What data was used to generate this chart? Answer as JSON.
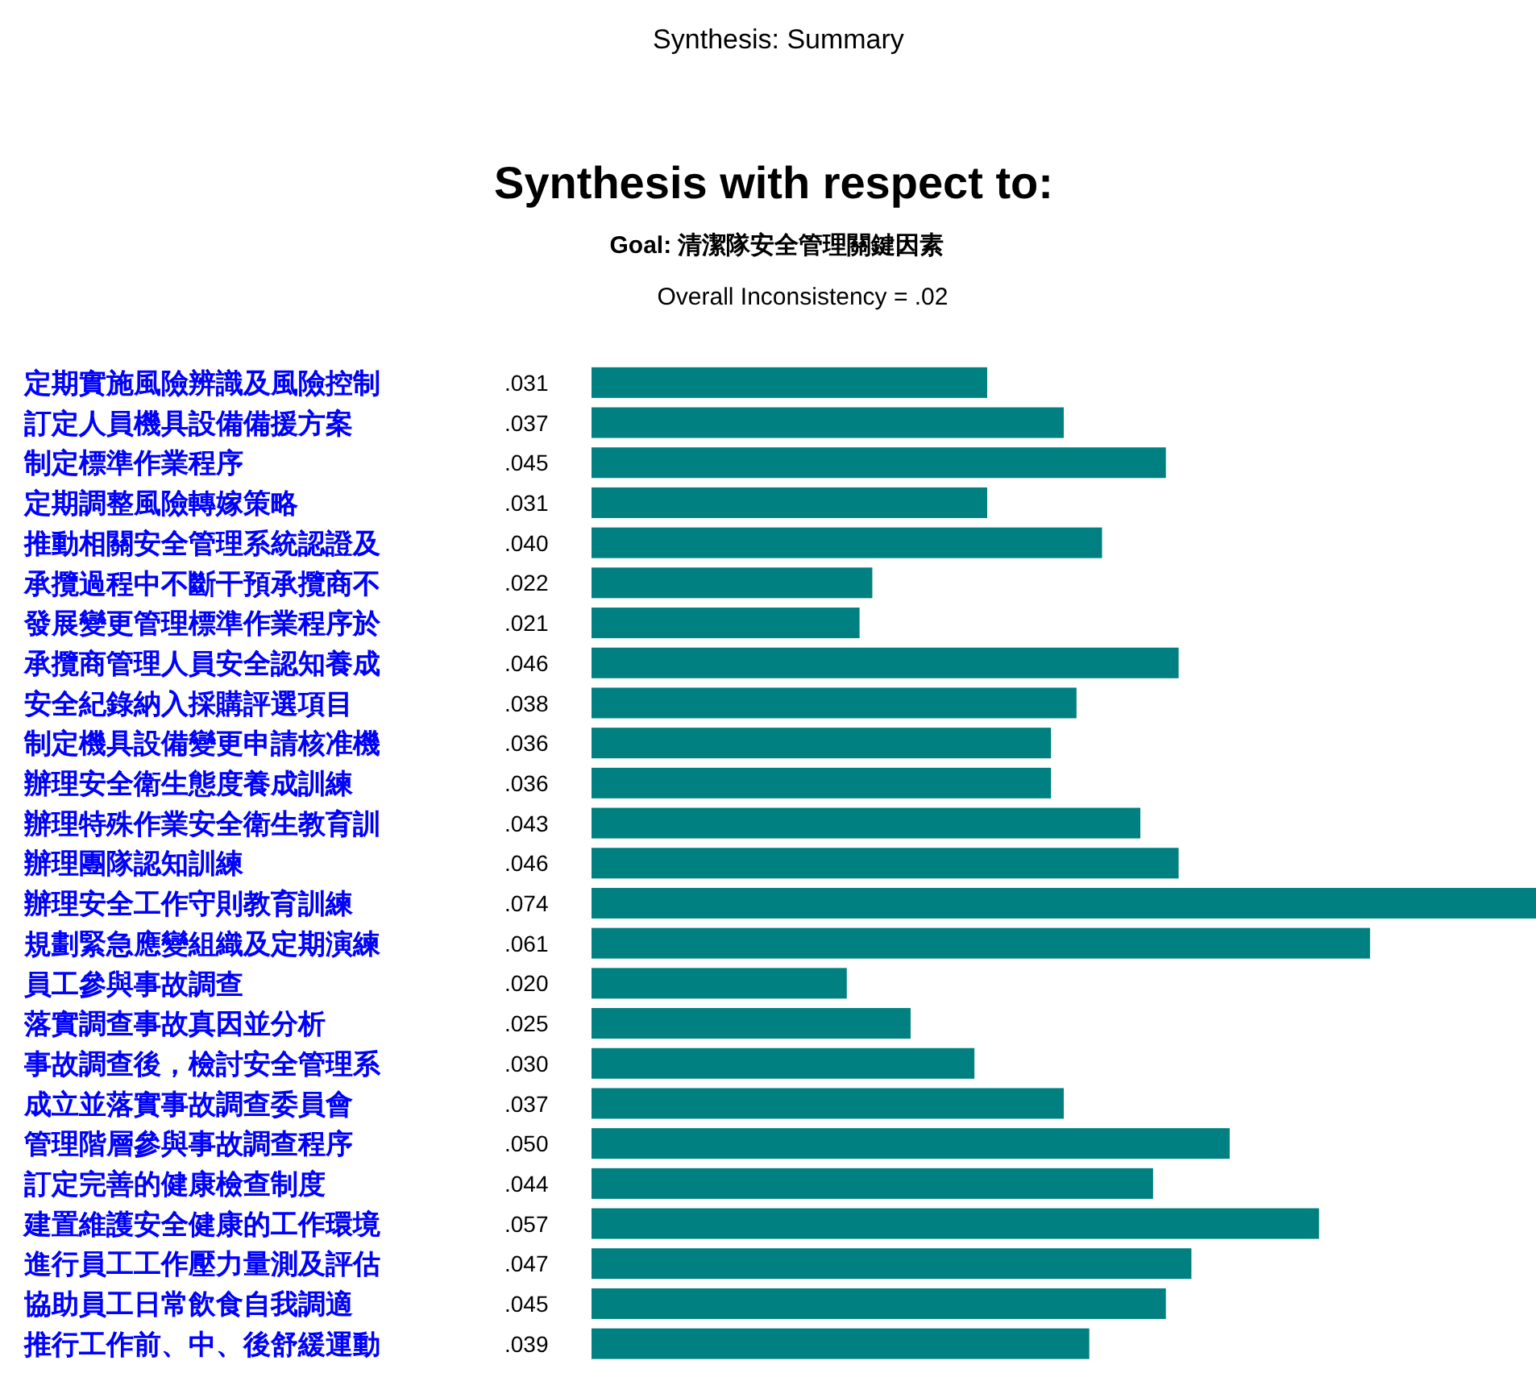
{
  "chart_data": {
    "type": "bar",
    "orientation": "horizontal",
    "title": "Synthesis: Summary",
    "subtitle": "Synthesis with respect to:",
    "annotations": [
      "Goal: 清潔隊安全管理關鍵因素",
      "Overall Inconsistency = .02"
    ],
    "categories": [
      "定期實施風險辨識及風險控制",
      "訂定人員機具設備備援方案",
      "制定標準作業程序",
      "定期調整風險轉嫁策略",
      "推動相關安全管理系統認證及",
      "承攬過程中不斷干預承攬商不",
      "發展變更管理標準作業程序於",
      "承攬商管理人員安全認知養成",
      "安全紀錄納入採購評選項目",
      "制定機具設備變更申請核准機",
      "辦理安全衛生態度養成訓練",
      "辦理特殊作業安全衛生教育訓",
      "辦理團隊認知訓練",
      "辦理安全工作守則教育訓練",
      "規劃緊急應變組織及定期演練",
      "員工參與事故調查",
      "落實調查事故真因並分析",
      "事故調查後，檢討安全管理系",
      "成立並落實事故調查委員會",
      "管理階層參與事故調查程序",
      "訂定完善的健康檢查制度",
      "建置維護安全健康的工作環境",
      "進行員工工作壓力量測及評估",
      "協助員工日常飲食自我調適",
      "推行工作前、中、後舒緩運動"
    ],
    "values": [
      0.031,
      0.037,
      0.045,
      0.031,
      0.04,
      0.022,
      0.021,
      0.046,
      0.038,
      0.036,
      0.036,
      0.043,
      0.046,
      0.074,
      0.061,
      0.02,
      0.025,
      0.03,
      0.037,
      0.05,
      0.044,
      0.057,
      0.047,
      0.045,
      0.039
    ],
    "value_labels": [
      ".031",
      ".037",
      ".045",
      ".031",
      ".040",
      ".022",
      ".021",
      ".046",
      ".038",
      ".036",
      ".036",
      ".043",
      ".046",
      ".074",
      ".061",
      ".020",
      ".025",
      ".030",
      ".037",
      ".050",
      ".044",
      ".057",
      ".047",
      ".045",
      ".039"
    ],
    "color": "#008080"
  }
}
